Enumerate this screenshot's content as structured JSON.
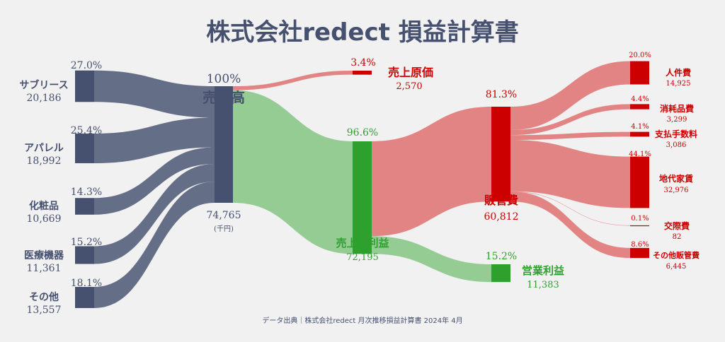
{
  "chart_data": {
    "type": "sankey",
    "title": "株式会社redect 損益計算書",
    "unit_label": "(千円)",
    "source_note": "データ出典｜株式会社redect 月次推移損益計算書 2024年 4月",
    "colors": {
      "navy": "#46506f",
      "green": "#2ea02e",
      "green_light": "#8ec98e",
      "red": "#cc0000",
      "red_light": "#e17d7d"
    },
    "revenue_sources": [
      {
        "name": "サブリース",
        "value": "20,186",
        "pct": "27.0%"
      },
      {
        "name": "アパレル",
        "value": "18,992",
        "pct": "25.4%"
      },
      {
        "name": "化粧品",
        "value": "10,669",
        "pct": "14.3%"
      },
      {
        "name": "医療機器",
        "value": "11,361",
        "pct": "15.2%"
      },
      {
        "name": "その他",
        "value": "13,557",
        "pct": "18.1%"
      }
    ],
    "revenue": {
      "name": "売上高",
      "value": "74,765",
      "pct": "100%"
    },
    "cost_of_sales": {
      "name": "売上原価",
      "value": "2,570",
      "pct": "3.4%"
    },
    "gross_profit": {
      "name": "売上総利益",
      "value": "72,195",
      "pct": "96.6%"
    },
    "sga": {
      "name": "販管費",
      "value": "60,812",
      "pct": "81.3%"
    },
    "operating_profit": {
      "name": "営業利益",
      "value": "11,383",
      "pct": "15.2%"
    },
    "sga_breakdown": [
      {
        "name": "人件費",
        "value": "14,925",
        "pct": "20.0%"
      },
      {
        "name": "消耗品費",
        "value": "3,299",
        "pct": "4.4%"
      },
      {
        "name": "支払手数料",
        "value": "3,086",
        "pct": "4.1%"
      },
      {
        "name": "地代家賃",
        "value": "32,976",
        "pct": "44.1%"
      },
      {
        "name": "交際費",
        "value": "82",
        "pct": "0.1%"
      },
      {
        "name": "その他販管費",
        "value": "6,445",
        "pct": "8.6%"
      }
    ]
  }
}
